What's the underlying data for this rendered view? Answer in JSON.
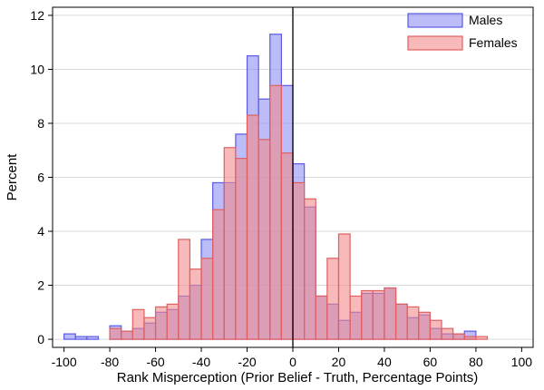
{
  "chart_data": {
    "type": "bar",
    "subtype": "overlaid-histogram",
    "xlabel": "Rank Misperception (Prior Belief - Truth, Percentage Points)",
    "ylabel": "Percent",
    "xlim": [
      -105,
      105
    ],
    "ylim": [
      -0.3,
      12.3
    ],
    "x_ticks": [
      -100,
      -80,
      -60,
      -40,
      -20,
      0,
      20,
      40,
      60,
      80,
      100
    ],
    "y_ticks": [
      0,
      2,
      4,
      6,
      8,
      10,
      12
    ],
    "grid": "horizontal",
    "reference_line_x": 0,
    "legend_position": "top-right",
    "bin_width": 5,
    "bin_left_edges": [
      -100,
      -95,
      -90,
      -85,
      -80,
      -75,
      -70,
      -65,
      -60,
      -55,
      -50,
      -45,
      -40,
      -35,
      -30,
      -25,
      -20,
      -15,
      -10,
      -5,
      0,
      5,
      10,
      15,
      20,
      25,
      30,
      35,
      40,
      45,
      50,
      55,
      60,
      65,
      70,
      75,
      80
    ],
    "series": [
      {
        "name": "Males",
        "fill": "#8f8ff5",
        "stroke": "#5a5ae6",
        "values": [
          0.2,
          0.1,
          0.1,
          0,
          0.5,
          0.3,
          0.4,
          0.6,
          1.0,
          1.1,
          1.6,
          2.0,
          3.7,
          5.8,
          5.8,
          7.6,
          10.5,
          8.9,
          11.3,
          9.4,
          6.5,
          4.9,
          1.6,
          1.3,
          0.7,
          1.0,
          1.7,
          1.7,
          1.9,
          1.3,
          0.8,
          0.9,
          0.4,
          0.2,
          0.2,
          0.3,
          0
        ]
      },
      {
        "name": "Females",
        "fill": "#f28b8b",
        "stroke": "#e06060",
        "values": [
          0,
          0,
          0,
          0,
          0.4,
          0.3,
          1.1,
          0.8,
          1.2,
          1.3,
          3.7,
          2.6,
          3.0,
          4.8,
          7.1,
          6.7,
          8.3,
          7.4,
          9.4,
          6.9,
          5.8,
          5.2,
          1.6,
          3.0,
          3.9,
          1.6,
          1.8,
          1.8,
          1.9,
          1.3,
          1.2,
          1.0,
          0.7,
          0.4,
          0.2,
          0.1,
          0.1
        ]
      }
    ]
  }
}
